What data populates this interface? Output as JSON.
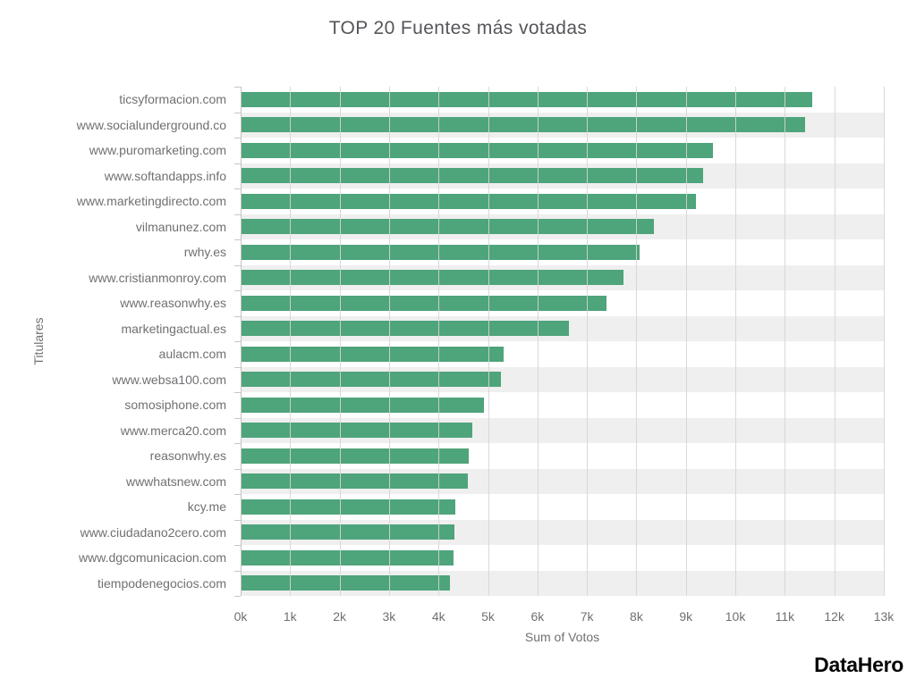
{
  "title": "TOP 20 Fuentes más votadas",
  "branding": {
    "logo_text": "DataHero"
  },
  "chart_data": {
    "type": "bar",
    "orientation": "horizontal",
    "title": "TOP 20 Fuentes más votadas",
    "xlabel": "Sum of Votos",
    "ylabel": "Titulares",
    "xlim": [
      0,
      13000
    ],
    "xtick_values": [
      0,
      1000,
      2000,
      3000,
      4000,
      5000,
      6000,
      7000,
      8000,
      9000,
      10000,
      11000,
      12000,
      13000
    ],
    "xtick_labels": [
      "0k",
      "1k",
      "2k",
      "3k",
      "4k",
      "5k",
      "6k",
      "7k",
      "8k",
      "9k",
      "10k",
      "11k",
      "12k",
      "13k"
    ],
    "grid": "vertical",
    "legend": "none",
    "row_striping": "alternate",
    "categories": [
      "ticsyformacion.com",
      "www.socialunderground.co",
      "www.puromarketing.com",
      "www.softandapps.info",
      "www.marketingdirecto.com",
      "vilmanunez.com",
      "rwhy.es",
      "www.cristianmonroy.com",
      "www.reasonwhy.es",
      "marketingactual.es",
      "aulacm.com",
      "www.websa100.com",
      "somosiphone.com",
      "www.merca20.com",
      "reasonwhy.es",
      "wwwhatsnew.com",
      "kcy.me",
      "www.ciudadano2cero.com",
      "www.dgcomunicacion.com",
      "tiempodenegocios.com"
    ],
    "values": [
      11550,
      11400,
      9550,
      9350,
      9200,
      8350,
      8070,
      7740,
      7400,
      6640,
      5320,
      5260,
      4920,
      4680,
      4610,
      4590,
      4340,
      4320,
      4300,
      4230
    ],
    "colors": {
      "bar": "#4ea47b",
      "stripe": "#efefef",
      "gridline": "#d5d5d5",
      "axis_line": "#c2c2c2",
      "title_text": "#55565a",
      "label_text": "#6f7073",
      "logo_text": "#050505"
    }
  }
}
